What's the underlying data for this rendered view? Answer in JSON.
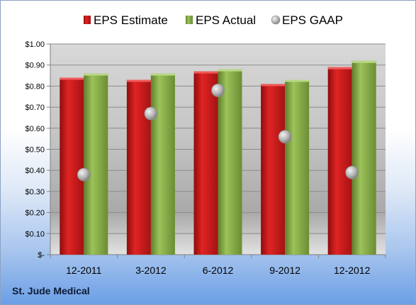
{
  "company": "St. Jude Medical",
  "chart_data": {
    "type": "bar",
    "categories": [
      "12-2011",
      "3-2012",
      "6-2012",
      "9-2012",
      "12-2012"
    ],
    "series": [
      {
        "name": "EPS Estimate",
        "kind": "bar",
        "color": "#d11a1a",
        "values": [
          0.84,
          0.83,
          0.87,
          0.81,
          0.89
        ]
      },
      {
        "name": "EPS Actual",
        "kind": "bar",
        "color": "#8bb24a",
        "values": [
          0.86,
          0.86,
          0.88,
          0.83,
          0.92
        ]
      },
      {
        "name": "EPS GAAP",
        "kind": "marker",
        "color": "#b9b9b9",
        "values": [
          0.38,
          0.67,
          0.78,
          0.56,
          0.39
        ]
      }
    ],
    "yticks": [
      "$-",
      "$0.10",
      "$0.20",
      "$0.30",
      "$0.40",
      "$0.50",
      "$0.60",
      "$0.70",
      "$0.80",
      "$0.90",
      "$1.00"
    ],
    "ylim": [
      0,
      1.0
    ],
    "grid": true,
    "legend": "top"
  }
}
